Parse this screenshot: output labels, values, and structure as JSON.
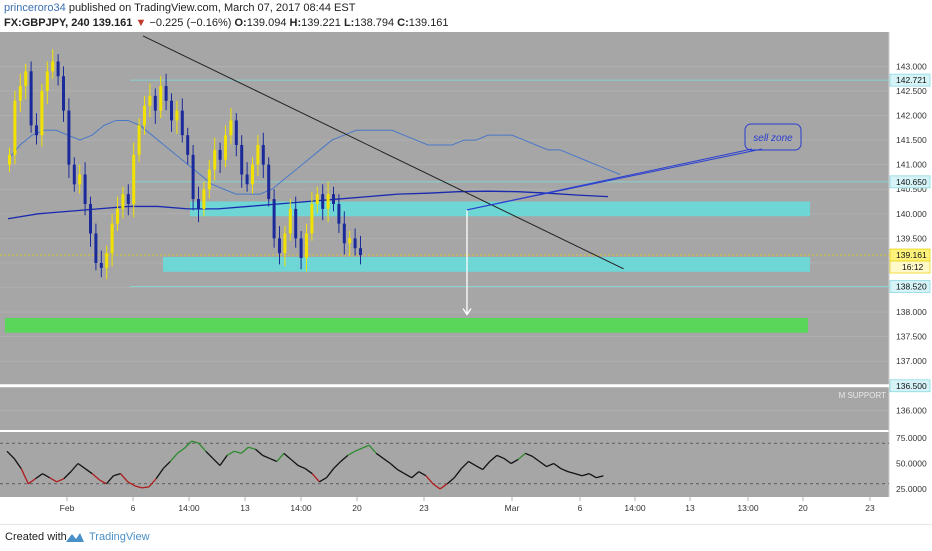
{
  "header": {
    "author": "princeroro34",
    "published_text": " published on TradingView.com, March 07, 2017 08:44 EST",
    "symbol": "FX:GBPJPY, 240",
    "last": "139.161",
    "arrow": "▼",
    "change": "−0.225 (−0.16%)",
    "o_label": "O:",
    "o_value": "139.094",
    "h_label": "H:",
    "h_value": "139.221",
    "l_label": "L:",
    "l_value": "138.794",
    "c_label": "C:",
    "c_value": "139.161"
  },
  "footer": {
    "created_with": "Created with",
    "brand": "TradingView"
  },
  "colors": {
    "plot_bg": "#a6a6a6",
    "bull": "#f2e200",
    "bear": "#1a2a9a",
    "zone": "#6fd6d6",
    "support": "#5ad65a",
    "ma_fast": "#4a78c8",
    "ma_slow": "#1a2ab0",
    "trendline": "#222222",
    "arrow": "#ffffff",
    "price_line": "#e6d200",
    "osc_bull": "#2e8b2e",
    "osc_bear": "#b01c1c",
    "osc_mid": "#111111"
  },
  "chart_data": [
    {
      "type": "candlestick",
      "title": "FX:GBPJPY, 240",
      "ylim": [
        135.6,
        143.7
      ],
      "y_ticks": [
        "143.000",
        "142.500",
        "142.000",
        "141.500",
        "141.000",
        "140.500",
        "140.000",
        "139.500",
        "139.000",
        "138.500",
        "138.000",
        "137.500",
        "137.000",
        "136.500",
        "136.000"
      ],
      "x_ticks": [
        "Feb",
        "6",
        "14:00",
        "13",
        "14:00",
        "20",
        "23",
        "Mar",
        "6",
        "14:00",
        "13",
        "13:00",
        "20",
        "23"
      ],
      "price_labels": [
        {
          "value": 142.721,
          "text": "142.721",
          "style": "line"
        },
        {
          "value": 140.65,
          "text": "140.650",
          "style": "line"
        },
        {
          "value": 139.161,
          "text": "139.161",
          "style": "last"
        },
        {
          "value": 138.52,
          "text": "138.520",
          "style": "line"
        },
        {
          "value": 136.5,
          "text": "136.500",
          "style": "line"
        }
      ],
      "countdown": "16:12",
      "close": [
        141.2,
        142.3,
        142.6,
        142.9,
        141.8,
        141.6,
        142.5,
        142.9,
        143.1,
        142.8,
        142.1,
        141.0,
        140.6,
        140.8,
        140.2,
        139.6,
        139.0,
        138.9,
        139.2,
        139.8,
        140.1,
        140.4,
        140.2,
        141.2,
        141.8,
        142.2,
        142.4,
        142.1,
        142.6,
        142.3,
        141.9,
        142.1,
        141.6,
        141.2,
        140.3,
        140.1,
        140.5,
        140.9,
        141.3,
        141.1,
        141.6,
        141.9,
        141.4,
        140.8,
        140.6,
        141.0,
        141.4,
        141.0,
        140.3,
        139.5,
        139.2,
        139.6,
        140.1,
        139.5,
        139.1,
        139.6,
        140.2,
        140.4,
        140.1,
        140.4,
        140.2,
        139.8,
        139.4,
        139.5,
        139.3,
        139.16
      ],
      "zones": [
        {
          "from": 139.95,
          "to": 140.25,
          "x_end_frac": 0.9
        },
        {
          "from": 138.82,
          "to": 139.12,
          "x_end_frac": 0.9
        }
      ],
      "support_zone": {
        "from": 137.58,
        "to": 137.88,
        "label": "M SUPPORT"
      },
      "support_line": 136.5,
      "trendline": {
        "p1": {
          "bar": 25,
          "price": 143.62
        },
        "p2": {
          "bar": 114,
          "price": 138.88
        }
      },
      "projection_arrow": {
        "bar": 85,
        "from": 140.08,
        "to": 137.95
      },
      "callout": {
        "text": "sell zone",
        "anchor_bar": 85,
        "anchor_price": 140.08
      },
      "ma_fast": [
        141.1,
        141.4,
        141.6,
        141.7,
        141.7,
        141.6,
        141.5,
        141.6,
        141.8,
        141.9,
        141.9,
        141.8,
        141.6,
        141.4,
        141.2,
        141.0,
        140.8,
        140.6,
        140.5,
        140.4,
        140.4,
        140.4,
        140.5,
        140.7,
        140.9,
        141.1,
        141.3,
        141.5,
        141.6,
        141.7,
        141.7,
        141.7,
        141.7,
        141.6,
        141.5,
        141.4,
        141.4,
        141.4,
        141.5,
        141.5,
        141.6,
        141.6,
        141.6,
        141.5,
        141.4,
        141.3,
        141.3,
        141.2,
        141.1,
        141.0,
        140.9,
        140.8
      ],
      "ma_slow": [
        139.9,
        140.0,
        140.05,
        140.1,
        140.15,
        140.15,
        140.1,
        140.1,
        140.15,
        140.2,
        140.25,
        140.3,
        140.35,
        140.4,
        140.42,
        140.45,
        140.46,
        140.45,
        140.42,
        140.38,
        140.35
      ]
    },
    {
      "type": "line",
      "title": "",
      "ylim": [
        20,
        80
      ],
      "y_ticks": [
        "75.0000",
        "50.0000",
        "25.0000"
      ],
      "levels": [
        70,
        30
      ],
      "values": [
        62,
        55,
        45,
        30,
        35,
        40,
        36,
        32,
        35,
        42,
        50,
        45,
        40,
        34,
        30,
        38,
        40,
        32,
        28,
        26,
        27,
        35,
        45,
        52,
        60,
        65,
        72,
        70,
        62,
        55,
        48,
        58,
        62,
        60,
        66,
        64,
        58,
        55,
        52,
        60,
        54,
        48,
        45,
        40,
        32,
        36,
        45,
        52,
        58,
        62,
        65,
        68,
        60,
        55,
        50,
        44,
        40,
        36,
        42,
        38,
        30,
        25,
        30,
        36,
        45,
        52,
        48,
        44,
        52,
        58,
        55,
        50,
        54,
        60,
        57,
        52,
        47,
        50,
        45,
        42,
        40,
        38,
        40,
        36,
        38
      ]
    }
  ]
}
